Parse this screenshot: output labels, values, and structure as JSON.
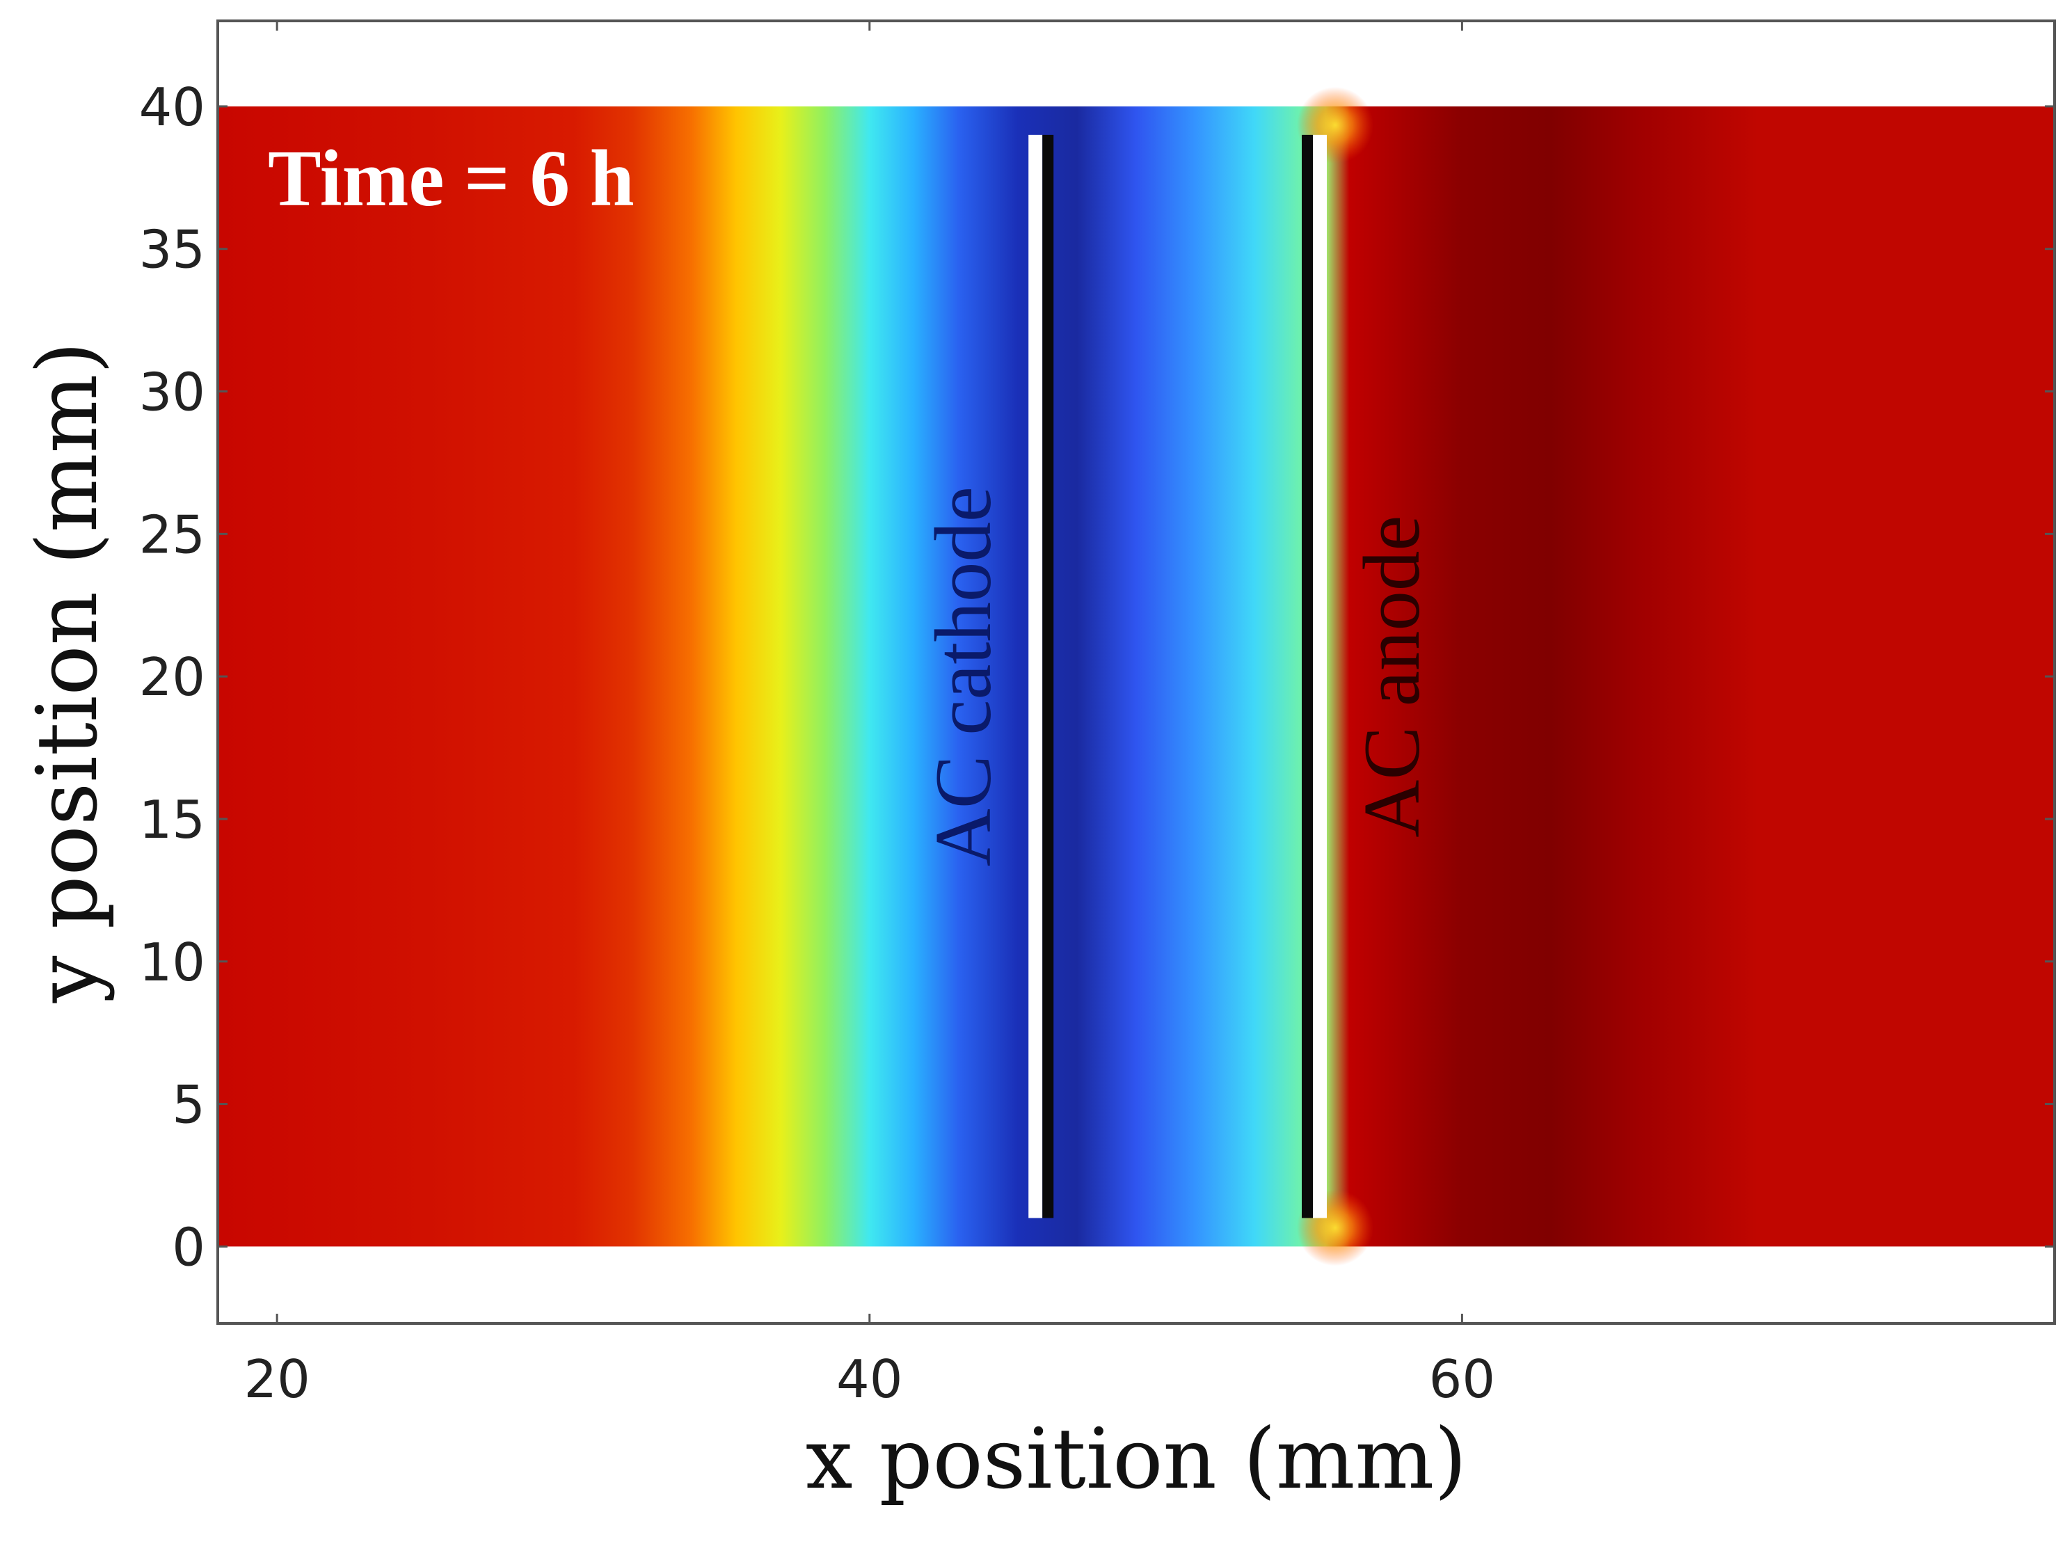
{
  "chart_data": {
    "type": "heatmap",
    "annotation": "Time = 6 h",
    "xlabel": "x position (mm)",
    "ylabel": "y position (mm)",
    "xlim": [
      18,
      80
    ],
    "ylim": [
      -2.7,
      43
    ],
    "x_ticks": [
      20,
      40,
      60
    ],
    "x_ticks_unlabeled": [
      80
    ],
    "y_ticks": [
      0,
      5,
      10,
      15,
      20,
      25,
      30,
      35,
      40
    ],
    "field_extent": {
      "x": [
        18,
        80
      ],
      "y": [
        0,
        40
      ]
    },
    "colormap": [
      "#800000",
      "#d41200",
      "#ff6a00",
      "#ffe000",
      "#b0f040",
      "#40f0ff",
      "#2a6cff",
      "#1a2aa0"
    ],
    "field_profile": [
      {
        "x": 18,
        "color": "#c80600"
      },
      {
        "x": 25,
        "color": "#d01000"
      },
      {
        "x": 30,
        "color": "#d81a00"
      },
      {
        "x": 32,
        "color": "#e23400"
      },
      {
        "x": 34,
        "color": "#f77000"
      },
      {
        "x": 35.5,
        "color": "#ffc400"
      },
      {
        "x": 37,
        "color": "#e8f01a"
      },
      {
        "x": 38.5,
        "color": "#90f060"
      },
      {
        "x": 40,
        "color": "#40e8f0"
      },
      {
        "x": 41.5,
        "color": "#2ab0ff"
      },
      {
        "x": 43,
        "color": "#2a62f0"
      },
      {
        "x": 45,
        "color": "#1a30b8"
      },
      {
        "x": 47,
        "color": "#1a2aa0"
      },
      {
        "x": 49,
        "color": "#2f55f0"
      },
      {
        "x": 51,
        "color": "#3494ff"
      },
      {
        "x": 53,
        "color": "#40d8f8"
      },
      {
        "x": 54.5,
        "color": "#6cf0b0"
      },
      {
        "x": 55.4,
        "color": "#a0f070"
      },
      {
        "x": 56.2,
        "color": "#c00000"
      },
      {
        "x": 60,
        "color": "#8a0000"
      },
      {
        "x": 63,
        "color": "#800000"
      },
      {
        "x": 66,
        "color": "#a00000"
      },
      {
        "x": 70,
        "color": "#c00600"
      },
      {
        "x": 80,
        "color": "#c00600"
      }
    ],
    "electrodes": [
      {
        "label": "AC cathode",
        "x": 45.6,
        "y_range": [
          1,
          39
        ],
        "label_color": "#0a1a6a"
      },
      {
        "label": "AC anode",
        "x": 55.2,
        "y_range": [
          1,
          39
        ],
        "label_color": "#2a0000"
      }
    ]
  }
}
